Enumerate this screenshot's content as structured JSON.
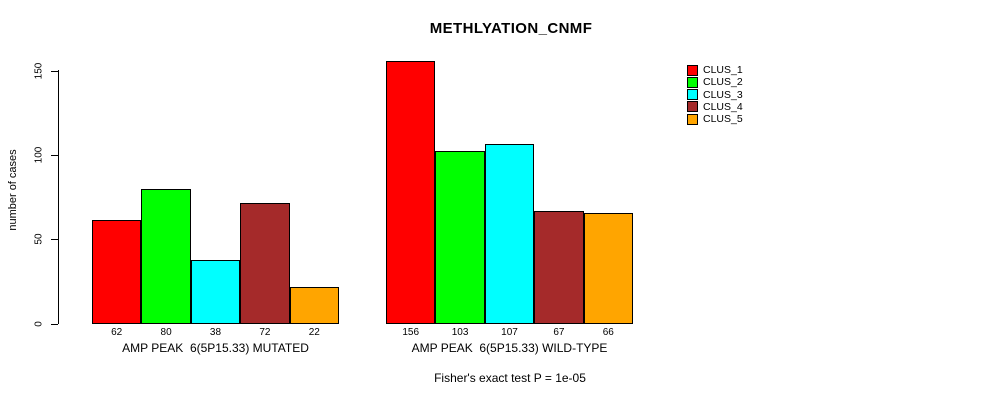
{
  "chart_data": {
    "type": "bar",
    "title": "METHLYATION_CNMF",
    "ylabel": "number of cases",
    "xlabel": "",
    "ylim": [
      0,
      157
    ],
    "yticks": [
      0,
      50,
      100,
      150
    ],
    "grid": false,
    "legend_position": "right",
    "bar_value_labels": true,
    "categories": [
      "AMP PEAK  6(5P15.33) MUTATED",
      "AMP PEAK  6(5P15.33) WILD-TYPE"
    ],
    "series": [
      {
        "name": "CLUS_1",
        "color": "#ff0000",
        "values": [
          62,
          156
        ]
      },
      {
        "name": "CLUS_2",
        "color": "#00ff00",
        "values": [
          80,
          103
        ]
      },
      {
        "name": "CLUS_3",
        "color": "#00ffff",
        "values": [
          38,
          107
        ]
      },
      {
        "name": "CLUS_4",
        "color": "#a52a2a",
        "values": [
          72,
          67
        ]
      },
      {
        "name": "CLUS_5",
        "color": "#ffa500",
        "values": [
          22,
          66
        ]
      }
    ],
    "annotation": "Fisher's exact test P = 1e-05"
  }
}
